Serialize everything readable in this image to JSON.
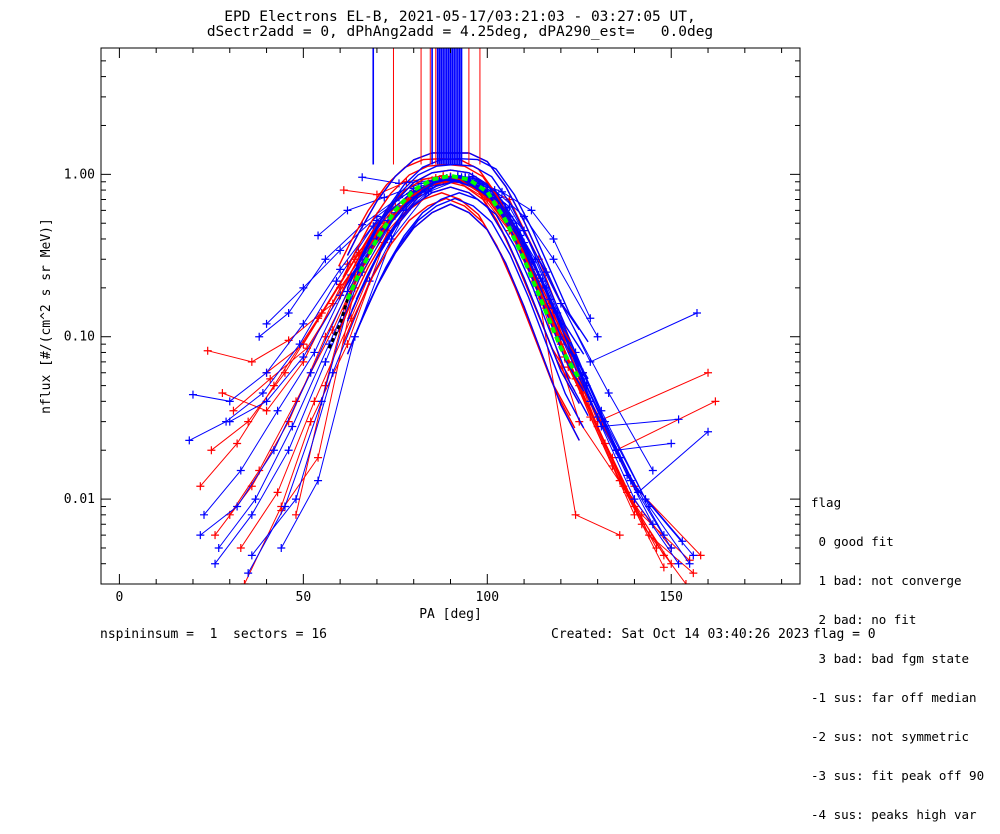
{
  "header": {
    "title_line1": "EPD Electrons EL-B, 2021-05-17/03:21:03 - 03:27:05 UT,",
    "title_line2": "dSectr2add = 0, dPhAng2add = 4.25deg, dPA290_est=   0.0deg"
  },
  "footer": {
    "left": "nspininsum =  1  sectors = 16",
    "created": "Created: Sat Oct 14 03:40:26 2023",
    "flag": "flag = 0"
  },
  "legend": {
    "title": "flag",
    "items": [
      " 0 good fit",
      " 1 bad: not converge",
      " 2 bad: no fit",
      " 3 bad: bad fgm state",
      "-1 sus: far off median",
      "-2 sus: not symmetric",
      "-3 sus: fit peak off 90",
      "-4 sus: peaks high var"
    ]
  },
  "colors": {
    "red": "#ff0000",
    "blue": "#0000ff",
    "fit": "#00ff00",
    "fit_dark": "#000000"
  },
  "chart_data": {
    "type": "line",
    "title": "EPD Electrons EL-B, 2021-05-17/03:21:03 - 03:27:05 UT,",
    "subtitle": "dSectr2add = 0, dPhAng2add = 4.25deg, dPA290_est=   0.0deg",
    "xlabel": "PA [deg]",
    "ylabel": "nflux [#/(cm^2 s sr MeV)]",
    "xlim": [
      -5,
      185
    ],
    "ylim": [
      0.003,
      6.0
    ],
    "yscale": "log",
    "x_ticks": [
      0,
      50,
      100,
      150
    ],
    "x_tick_labels": [
      "0",
      "50",
      "100",
      "150"
    ],
    "y_ticks": [
      0.01,
      0.1,
      1.0
    ],
    "y_tick_labels": [
      "0.01",
      "0.10",
      "1.00"
    ],
    "grid": false,
    "fit_curve": {
      "x": [
        62,
        65,
        70,
        75,
        80,
        85,
        90,
        95,
        100,
        105,
        110,
        115,
        120,
        125
      ],
      "y": [
        0.17,
        0.24,
        0.4,
        0.6,
        0.8,
        0.93,
        0.98,
        0.93,
        0.78,
        0.52,
        0.3,
        0.16,
        0.085,
        0.055
      ]
    },
    "fit_curve_dark": {
      "x": [
        57,
        60,
        62
      ],
      "y": [
        0.085,
        0.12,
        0.17
      ]
    },
    "peak_markers": {
      "red_x": [
        74.5,
        82,
        84.5,
        86,
        88,
        95,
        98
      ],
      "blue_x": [
        69,
        85,
        86.5,
        87,
        87.5,
        88,
        88.5,
        89,
        89.5,
        90,
        90.5,
        91,
        91.5,
        92,
        92.5,
        93
      ],
      "y_min": 1.15,
      "y_max": 6.0
    },
    "series": [
      {
        "name": "",
        "color": "#ff0000",
        "points": [
          [
            24,
            0.082,
            36,
            0.07,
            46,
            0.095,
            58,
            0.16,
            66,
            0.33,
            76,
            0.62,
            86,
            0.95,
            96,
            0.9,
            106,
            0.55,
            118,
            0.14,
            130,
            0.028,
            140,
            0.009,
            150,
            0.004
          ],
          [
            28,
            0.045,
            40,
            0.035,
            50,
            0.07,
            60,
            0.2,
            70,
            0.42,
            80,
            0.75,
            90,
            0.96,
            100,
            0.7,
            110,
            0.35,
            122,
            0.065,
            134,
            0.018,
            144,
            0.006,
            156,
            0.0035
          ],
          [
            22,
            0.012,
            32,
            0.022,
            42,
            0.05,
            54,
            0.13,
            64,
            0.3,
            74,
            0.55,
            84,
            0.88,
            94,
            0.93,
            104,
            0.6,
            114,
            0.2,
            126,
            0.045,
            138,
            0.011,
            148,
            0.0045
          ],
          [
            30,
            0.008,
            38,
            0.015,
            48,
            0.04,
            58,
            0.11,
            68,
            0.35,
            78,
            0.68,
            88,
            0.97,
            98,
            0.82,
            108,
            0.4,
            120,
            0.09,
            132,
            0.022,
            142,
            0.007,
            154,
            0.003
          ],
          [
            26,
            0.006,
            36,
            0.012,
            46,
            0.03,
            56,
            0.1,
            66,
            0.28,
            76,
            0.6,
            86,
            0.9,
            96,
            0.88,
            106,
            0.45,
            116,
            0.15,
            128,
            0.032,
            140,
            0.008
          ],
          [
            34,
            0.003,
            44,
            0.009,
            52,
            0.03,
            62,
            0.09,
            72,
            0.38,
            82,
            0.78,
            92,
            0.95,
            102,
            0.72,
            112,
            0.28,
            124,
            0.055,
            136,
            0.013,
            146,
            0.005
          ],
          [
            25,
            0.02,
            35,
            0.03,
            45,
            0.06,
            55,
            0.14,
            65,
            0.33,
            75,
            0.63,
            85,
            0.92,
            95,
            0.9,
            105,
            0.58,
            117,
            0.16,
            130,
            0.03,
            160,
            0.06
          ],
          [
            40,
            0.06,
            50,
            0.09,
            60,
            0.21,
            70,
            0.5,
            80,
            0.79,
            90,
            0.97,
            100,
            0.74,
            110,
            0.33,
            122,
            0.07,
            135,
            0.02,
            162,
            0.04
          ],
          [
            33,
            0.005,
            43,
            0.011,
            53,
            0.04,
            63,
            0.13,
            73,
            0.45,
            83,
            0.8,
            93,
            0.94,
            103,
            0.64,
            113,
            0.22,
            125,
            0.05,
            137,
            0.012,
            150,
            0.005
          ],
          [
            48,
            0.008,
            56,
            0.05,
            64,
            0.24,
            74,
            0.56,
            84,
            0.86,
            94,
            0.95,
            104,
            0.62,
            114,
            0.18,
            124,
            0.008,
            136,
            0.006
          ],
          [
            61,
            0.8,
            70,
            0.75,
            78,
            0.9,
            88,
            0.98,
            98,
            0.85,
            106,
            0.7,
            114,
            0.3,
            126,
            0.06
          ],
          [
            31,
            0.035,
            41,
            0.055,
            51,
            0.085,
            60,
            0.18,
            70,
            0.44,
            80,
            0.74,
            90,
            0.97,
            100,
            0.76,
            110,
            0.34,
            121,
            0.075,
            134,
            0.016,
            148,
            0.0038
          ],
          [
            62,
            0.28,
            72,
            0.5,
            82,
            0.82,
            92,
            0.96,
            102,
            0.7,
            112,
            0.26,
            125,
            0.03,
            142,
            0.008,
            155,
            0.0042
          ],
          [
            44,
            0.0085,
            54,
            0.018,
            64,
            0.2,
            74,
            0.53,
            84,
            0.87,
            94,
            0.94,
            104,
            0.58,
            115,
            0.2,
            126,
            0.05,
            140,
            0.012,
            158,
            0.0045
          ]
        ]
      },
      {
        "name": "",
        "color": "#0000ff",
        "points": [
          [
            20,
            0.044,
            30,
            0.04,
            40,
            0.06,
            50,
            0.12,
            60,
            0.26,
            70,
            0.52,
            80,
            0.78,
            90,
            0.94,
            100,
            0.76,
            110,
            0.38,
            120,
            0.12,
            132,
            0.03,
            144,
            0.009,
            155,
            0.004
          ],
          [
            19,
            0.023,
            29,
            0.03,
            39,
            0.045,
            49,
            0.09,
            59,
            0.22,
            69,
            0.48,
            79,
            0.76,
            89,
            0.95,
            99,
            0.8,
            109,
            0.42,
            119,
            0.14,
            131,
            0.035,
            143,
            0.01,
            156,
            0.0045
          ],
          [
            23,
            0.008,
            33,
            0.015,
            43,
            0.035,
            53,
            0.08,
            63,
            0.24,
            73,
            0.52,
            83,
            0.83,
            93,
            0.96,
            103,
            0.72,
            113,
            0.3,
            124,
            0.08,
            136,
            0.018,
            148,
            0.006
          ],
          [
            27,
            0.005,
            37,
            0.01,
            47,
            0.028,
            57,
            0.09,
            67,
            0.3,
            77,
            0.64,
            87,
            0.92,
            97,
            0.9,
            107,
            0.5,
            117,
            0.17,
            128,
            0.04,
            140,
            0.01,
            152,
            0.004
          ],
          [
            35,
            0.0035,
            45,
            0.009,
            55,
            0.04,
            65,
            0.26,
            75,
            0.58,
            85,
            0.88,
            95,
            0.95,
            105,
            0.62,
            115,
            0.22,
            126,
            0.055,
            138,
            0.014,
            150,
            0.005
          ],
          [
            40,
            0.12,
            50,
            0.2,
            60,
            0.34,
            70,
            0.55,
            80,
            0.82,
            90,
            0.96,
            100,
            0.8,
            110,
            0.45,
            120,
            0.16,
            133,
            0.045,
            145,
            0.015
          ],
          [
            38,
            0.1,
            46,
            0.14,
            56,
            0.3,
            66,
            0.49,
            76,
            0.72,
            86,
            0.9,
            96,
            0.97,
            106,
            0.63,
            116,
            0.25,
            128,
            0.07,
            157,
            0.14
          ],
          [
            22,
            0.006,
            32,
            0.009,
            42,
            0.02,
            52,
            0.06,
            62,
            0.19,
            72,
            0.46,
            82,
            0.8,
            92,
            0.97,
            102,
            0.74,
            112,
            0.3,
            123,
            0.08,
            135,
            0.02,
            150,
            0.022
          ],
          [
            54,
            0.42,
            62,
            0.6,
            72,
            0.72,
            82,
            0.88,
            92,
            0.98,
            102,
            0.8,
            110,
            0.55,
            118,
            0.3,
            130,
            0.1
          ],
          [
            26,
            0.004,
            36,
            0.008,
            46,
            0.02,
            56,
            0.07,
            66,
            0.25,
            76,
            0.6,
            86,
            0.9,
            96,
            0.92,
            106,
            0.55,
            116,
            0.2,
            127,
            0.05,
            141,
            0.011,
            160,
            0.026
          ],
          [
            66,
            0.96,
            76,
            0.88,
            86,
            0.92,
            94,
            0.96,
            104,
            0.78,
            112,
            0.6,
            118,
            0.4,
            128,
            0.13
          ],
          [
            30,
            0.03,
            40,
            0.04,
            50,
            0.075,
            60,
            0.18,
            70,
            0.4,
            80,
            0.72,
            90,
            0.95,
            100,
            0.78,
            110,
            0.36,
            120,
            0.1,
            131,
            0.028,
            152,
            0.031
          ],
          [
            44,
            0.005,
            54,
            0.013,
            64,
            0.1,
            74,
            0.4,
            84,
            0.78,
            94,
            0.96,
            104,
            0.66,
            114,
            0.24,
            126,
            0.06,
            139,
            0.013,
            153,
            0.0055
          ],
          [
            36,
            0.0045,
            48,
            0.01,
            58,
            0.06,
            68,
            0.22,
            78,
            0.6,
            88,
            0.93,
            98,
            0.88,
            108,
            0.46,
            118,
            0.15,
            130,
            0.032,
            145,
            0.007
          ]
        ]
      }
    ]
  }
}
